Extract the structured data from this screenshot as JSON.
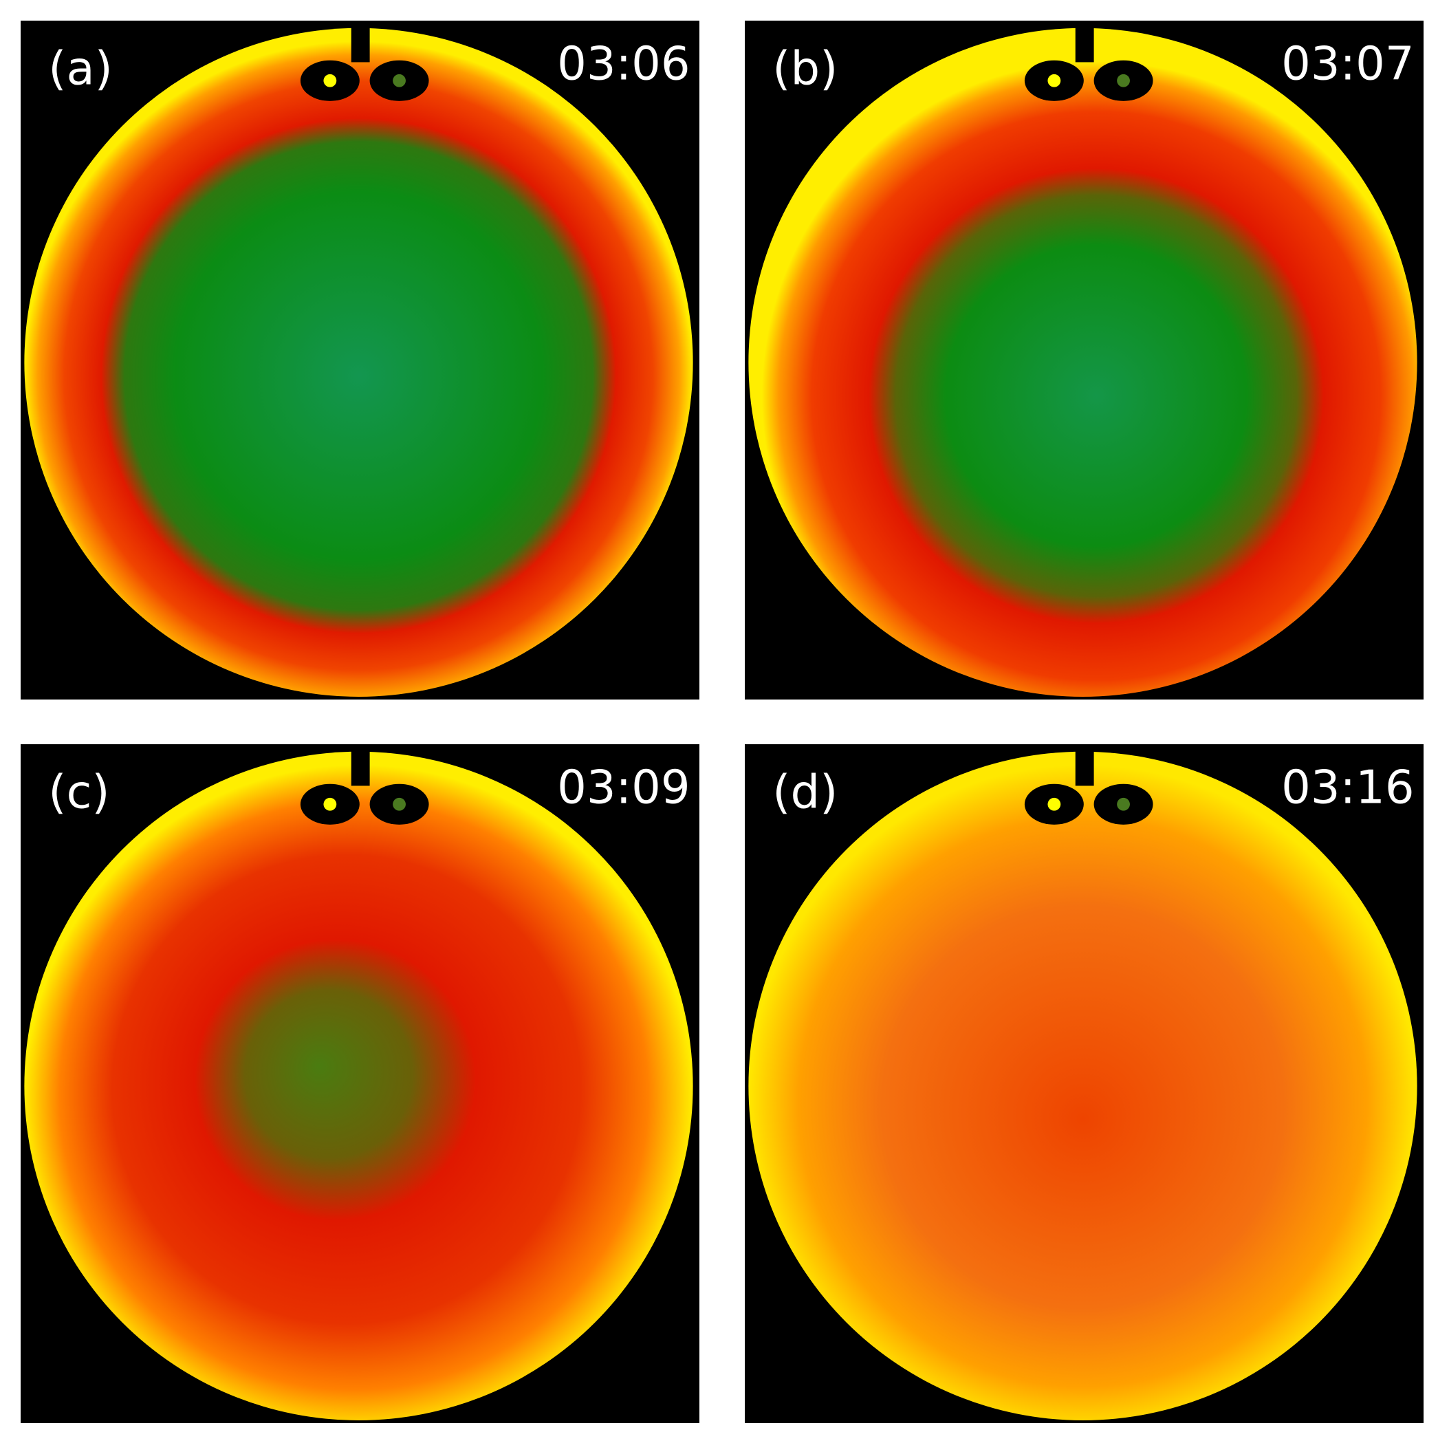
{
  "panels": [
    {
      "label": "(a)",
      "time": "03:06"
    },
    {
      "label": "(b)",
      "time": "03:07"
    },
    {
      "label": "(c)",
      "time": "03:09"
    },
    {
      "label": "(d)",
      "time": "03:16"
    }
  ]
}
